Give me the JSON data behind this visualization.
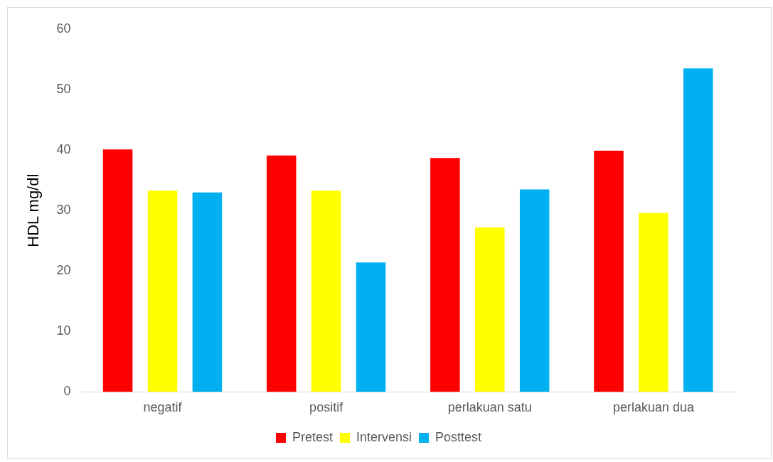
{
  "chart_data": {
    "type": "bar",
    "ylabel": "HDL mg/dl",
    "categories": [
      "negatif",
      "positif",
      "perlakuan satu",
      "perlakuan dua"
    ],
    "series": [
      {
        "name": "Pretest",
        "color": "#ff0000",
        "values": [
          40.1,
          39.1,
          38.7,
          39.9
        ]
      },
      {
        "name": "Intervensi",
        "color": "#ffff00",
        "values": [
          33.3,
          33.3,
          27.2,
          29.6
        ]
      },
      {
        "name": "Posttest",
        "color": "#00b0f0",
        "values": [
          33.0,
          21.4,
          33.5,
          53.5
        ]
      }
    ],
    "ylim": [
      0,
      60
    ],
    "yticks": [
      0,
      10,
      20,
      30,
      40,
      50,
      60
    ],
    "grid": false,
    "legend": "bottom"
  }
}
